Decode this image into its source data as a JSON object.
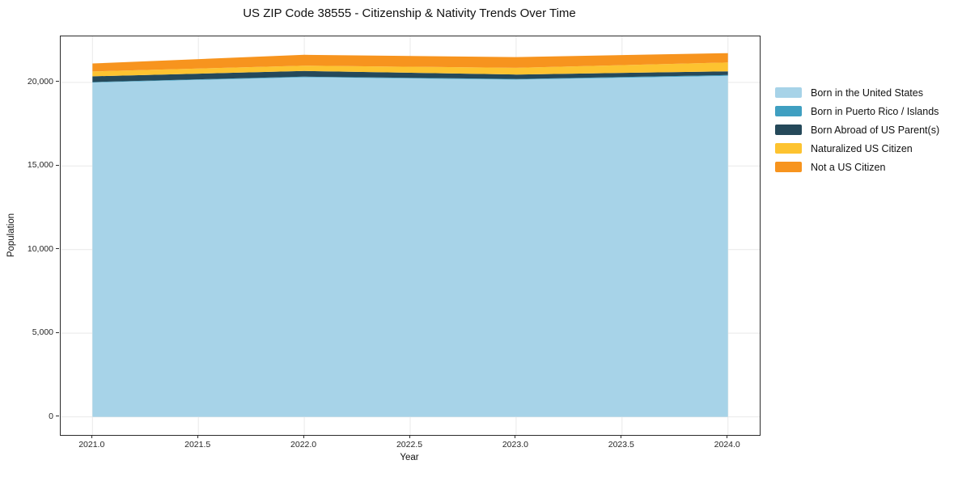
{
  "figure": {
    "title": "US ZIP Code 38555 - Citizenship & Nativity Trends Over Time",
    "xlabel": "Year",
    "ylabel": "Population"
  },
  "chart_data": {
    "type": "area",
    "stacked": true,
    "title": "US ZIP Code 38555 - Citizenship & Nativity Trends Over Time",
    "xlabel": "Year",
    "ylabel": "Population",
    "x": [
      2021,
      2022,
      2023,
      2024
    ],
    "series": [
      {
        "name": "Born in the United States",
        "color": "#a7d3e8",
        "values": [
          19990,
          20310,
          20170,
          20390
        ]
      },
      {
        "name": "Born in Puerto Rico / Islands",
        "color": "#3f9fc1",
        "values": [
          30,
          30,
          30,
          50
        ]
      },
      {
        "name": "Born Abroad of US Parent(s)",
        "color": "#25495a",
        "values": [
          340,
          340,
          270,
          220
        ]
      },
      {
        "name": "Naturalized US Citizen",
        "color": "#fdc330",
        "values": [
          290,
          320,
          400,
          530
        ]
      },
      {
        "name": "Not a US Citizen",
        "color": "#f7941e",
        "values": [
          480,
          650,
          640,
          560
        ]
      }
    ],
    "totals": [
      21130,
      21650,
      21510,
      21750
    ],
    "xlim": [
      2020.85,
      2024.15
    ],
    "ylim": [
      -1085,
      22750
    ],
    "x_ticks": [
      2021.0,
      2021.5,
      2022.0,
      2022.5,
      2023.0,
      2023.5,
      2024.0
    ],
    "x_tick_labels": [
      "2021.0",
      "2021.5",
      "2022.0",
      "2022.5",
      "2023.0",
      "2023.5",
      "2024.0"
    ],
    "y_ticks": [
      0,
      5000,
      10000,
      15000,
      20000
    ],
    "y_tick_labels": [
      "0",
      "5,000",
      "10,000",
      "15,000",
      "20,000"
    ],
    "grid": true,
    "grid_color": "#e9e9e9",
    "spine_color": "#2b2b2b",
    "legend_position": "right"
  }
}
